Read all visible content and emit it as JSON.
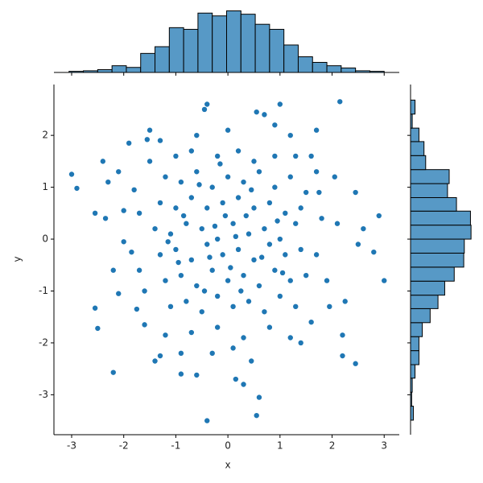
{
  "chart_data": [
    {
      "type": "scatter",
      "x_label": "x",
      "y_label": "y",
      "color": "#1f77b4",
      "xlim": [
        -3.34,
        3.29
      ],
      "ylim": [
        -3.77,
        2.98
      ],
      "xticks": [
        -3,
        -2,
        -1,
        0,
        1,
        2,
        3
      ],
      "yticks": [
        -3,
        -2,
        -1,
        0,
        1,
        2
      ],
      "x": [
        -3.0,
        -2.9,
        -2.55,
        -2.55,
        -2.5,
        -2.2,
        -0.4,
        0.55,
        0.6,
        0.45,
        0.15,
        0.3,
        -0.6,
        -0.9,
        2.45,
        2.2,
        3.0,
        2.8,
        2.9,
        2.6,
        2.5,
        2.15,
        1.0,
        -0.4,
        -0.45,
        0.55,
        0.7,
        -1.5,
        -1.55,
        -1.9,
        1.7,
        1.2,
        2.05,
        2.45,
        2.2,
        2.25,
        1.9,
        -2.0,
        -2.2,
        -2.1,
        -1.75,
        -1.6,
        -1.4,
        -1.3,
        -1.2,
        -2.3,
        -2.4,
        -2.1,
        -1.8,
        -2.35,
        -1.2,
        -0.9,
        -0.6,
        -0.3,
        0.0,
        0.3,
        0.6,
        0.9,
        1.2,
        1.5,
        -1.3,
        -1.0,
        -0.7,
        -0.4,
        -0.1,
        0.2,
        0.5,
        0.8,
        1.1,
        1.4,
        -1.4,
        -1.1,
        -0.8,
        -0.5,
        -0.2,
        0.1,
        0.4,
        0.7,
        1.0,
        1.3,
        -1.3,
        -1.0,
        -0.7,
        -0.4,
        -0.1,
        0.2,
        0.5,
        0.8,
        1.1,
        1.4,
        -1.2,
        -0.9,
        -0.6,
        -0.3,
        0.0,
        0.3,
        0.6,
        0.9,
        1.2,
        1.5,
        -1.1,
        -0.8,
        -0.5,
        -0.2,
        0.1,
        0.4,
        0.7,
        1.0,
        1.3,
        -1.0,
        -0.7,
        -0.2,
        0.2,
        0.5,
        0.9,
        1.3,
        -1.5,
        1.7,
        1.8,
        1.7,
        -1.7,
        -1.7,
        -1.6,
        -0.7,
        -0.2,
        0.3,
        0.8,
        1.2,
        1.6,
        -0.3,
        0.1,
        -0.9,
        1.4,
        -0.05,
        0.35,
        -0.35,
        0.65,
        -0.85,
        0.05,
        -0.55,
        0.45,
        0.95,
        -0.95,
        -0.15,
        1.05,
        -1.15,
        0.25,
        -0.45,
        0.15,
        -0.25,
        1.75,
        -1.85,
        1.95,
        2.1,
        -2.0,
        1.6,
        -1.3,
        0.0,
        -0.6,
        0.9
      ],
      "y": [
        1.25,
        0.98,
        0.5,
        -1.33,
        -1.72,
        -2.57,
        -3.5,
        -3.4,
        -3.05,
        -2.35,
        -2.7,
        -2.8,
        -2.62,
        -2.6,
        -2.4,
        -2.25,
        -0.8,
        -0.25,
        0.45,
        0.2,
        -0.1,
        2.65,
        2.6,
        2.6,
        2.5,
        2.45,
        2.4,
        2.1,
        1.92,
        1.85,
        2.1,
        2.0,
        1.2,
        0.9,
        -1.85,
        -1.2,
        -0.8,
        -0.05,
        -0.6,
        -1.05,
        -1.35,
        -1.65,
        -2.35,
        -2.25,
        -1.85,
        1.1,
        1.5,
        1.3,
        0.95,
        0.4,
        1.2,
        1.1,
        1.3,
        1.0,
        1.2,
        1.1,
        1.3,
        1.0,
        1.2,
        0.9,
        0.7,
        0.6,
        0.8,
        0.6,
        0.7,
        0.8,
        0.6,
        0.7,
        0.5,
        0.6,
        0.2,
        0.1,
        0.3,
        0.2,
        0.0,
        0.3,
        0.1,
        0.2,
        0.0,
        0.3,
        -0.3,
        -0.2,
        -0.4,
        -0.1,
        -0.3,
        -0.2,
        -0.4,
        -0.1,
        -0.3,
        -0.2,
        -0.8,
        -0.7,
        -0.9,
        -0.6,
        -0.8,
        -0.7,
        -0.9,
        -0.6,
        -0.8,
        -0.7,
        -1.3,
        -1.2,
        -1.4,
        -1.1,
        -1.3,
        -1.2,
        -1.4,
        -1.1,
        -1.3,
        1.6,
        1.7,
        1.6,
        1.7,
        1.5,
        1.6,
        1.6,
        1.5,
        1.3,
        0.4,
        -0.3,
        0.5,
        -0.6,
        -1.0,
        -1.8,
        -1.7,
        -1.9,
        -1.7,
        -1.9,
        -1.6,
        -2.2,
        -2.1,
        -2.2,
        -2.0,
        0.45,
        0.45,
        -0.35,
        -0.35,
        0.45,
        -0.55,
        1.05,
        0.95,
        0.35,
        -0.45,
        1.45,
        -0.65,
        -0.05,
        -1.0,
        -1.0,
        0.05,
        0.25,
        0.9,
        -0.25,
        -1.3,
        0.3,
        0.55,
        1.6,
        1.9,
        2.1,
        2.0,
        2.2
      ]
    },
    {
      "type": "histogram",
      "orientation": "vertical",
      "color": "#5799c6",
      "bins": [
        -3.05,
        -2.775,
        -2.5,
        -2.225,
        -1.95,
        -1.675,
        -1.4,
        -1.125,
        -0.85,
        -0.575,
        -0.3,
        -0.025,
        0.25,
        0.525,
        0.8,
        1.075,
        1.35,
        1.625,
        1.9,
        2.175,
        2.45,
        2.725,
        3.0
      ],
      "values": [
        2,
        3,
        5,
        12,
        9,
        34,
        46,
        80,
        77,
        106,
        101,
        110,
        104,
        86,
        77,
        49,
        28,
        18,
        12,
        8,
        3,
        2
      ],
      "ylim": [
        0,
        115
      ]
    },
    {
      "type": "histogram",
      "orientation": "horizontal",
      "color": "#5799c6",
      "bins": [
        -3.49,
        -3.22,
        -2.95,
        -2.68,
        -2.42,
        -2.15,
        -1.88,
        -1.61,
        -1.34,
        -1.08,
        -0.81,
        -0.54,
        -0.27,
        0.0,
        0.27,
        0.54,
        0.8,
        1.07,
        1.34,
        1.61,
        1.88,
        2.14,
        2.41,
        2.68
      ],
      "values": [
        5,
        2,
        3,
        8,
        15,
        15,
        21,
        35,
        49,
        61,
        78,
        95,
        96,
        108,
        107,
        82,
        66,
        69,
        27,
        24,
        15,
        3,
        8
      ],
      "xlim": [
        0,
        115
      ]
    }
  ]
}
